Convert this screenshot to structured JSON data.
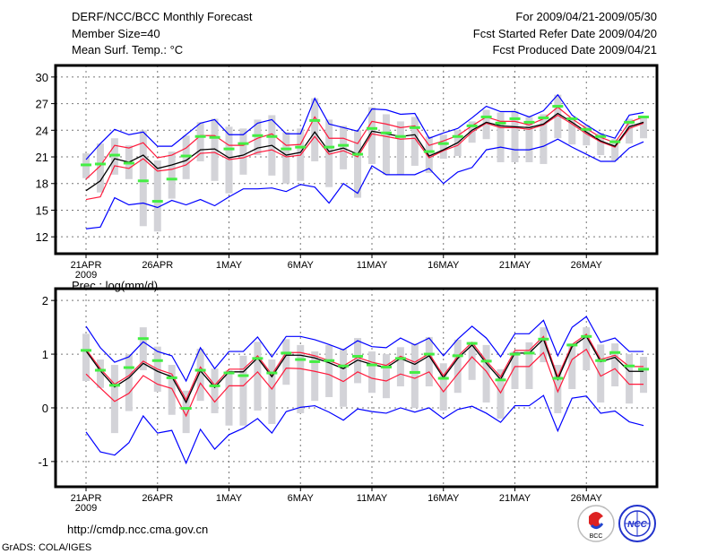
{
  "header": {
    "title": "DERF/NCC/BCC Monthly Forecast",
    "member_size": "Member Size=40",
    "variable": "Mean Surf. Temp.: °C",
    "period": "For 2009/04/21-2009/05/30",
    "started": "Fcst Started Refer Date 2009/04/20",
    "produced": "Fcst Produced Date 2009/04/21"
  },
  "footer": {
    "url": "http://cmdp.ncc.cma.gov.cn",
    "credit": "GrADS: COLA/IGES",
    "logo_bcc": "BCC",
    "logo_ncc": "NCC"
  },
  "colors": {
    "mean": "#000000",
    "spread": "#ff1a3c",
    "extreme": "#0000ff",
    "obs": "#44ee44",
    "range": "#d3d3d8"
  },
  "chart_data": [
    {
      "type": "line",
      "title": "Mean Surf. Temp.: °C",
      "xlabel_year": "2009",
      "xticks": [
        "21APR",
        "26APR",
        "1MAY",
        "6MAY",
        "11MAY",
        "16MAY",
        "21MAY",
        "26MAY"
      ],
      "xtick_days": [
        0,
        5,
        10,
        15,
        20,
        25,
        30,
        35
      ],
      "yticks": [
        12,
        15,
        18,
        21,
        24,
        27,
        30
      ],
      "ylim": [
        10.1,
        31.3
      ],
      "grid": true,
      "days": 40,
      "series": [
        {
          "name": "mean",
          "values": [
            17.2,
            18.3,
            20.8,
            20.4,
            21.2,
            19.7,
            20.1,
            20.6,
            21.8,
            21.9,
            20.9,
            21.2,
            22.0,
            22.3,
            21.2,
            21.5,
            23.8,
            21.6,
            22.0,
            21.3,
            23.9,
            23.6,
            23.3,
            23.5,
            21.1,
            21.8,
            22.6,
            24.0,
            24.9,
            24.5,
            24.4,
            24.3,
            24.7,
            25.9,
            24.9,
            23.8,
            22.8,
            22.2,
            24.4,
            24.9
          ]
        },
        {
          "name": "upper",
          "values": [
            18.5,
            20.0,
            22.3,
            22.0,
            22.6,
            20.9,
            21.2,
            22.0,
            23.4,
            23.4,
            22.3,
            22.3,
            23.1,
            23.6,
            22.3,
            22.4,
            25.5,
            23.1,
            23.1,
            22.5,
            25.0,
            24.7,
            24.3,
            24.5,
            22.3,
            22.8,
            23.4,
            24.5,
            25.5,
            25.0,
            25.0,
            24.6,
            25.3,
            26.6,
            25.3,
            24.2,
            23.2,
            22.6,
            24.9,
            25.5
          ]
        },
        {
          "name": "lower",
          "values": [
            16.2,
            16.5,
            20.0,
            19.7,
            20.8,
            19.4,
            19.6,
            20.1,
            21.4,
            21.5,
            20.7,
            20.9,
            21.5,
            21.8,
            21.0,
            21.2,
            23.3,
            21.3,
            21.7,
            21.0,
            23.6,
            23.3,
            23.0,
            23.1,
            20.9,
            21.7,
            22.3,
            23.8,
            24.8,
            24.3,
            24.3,
            24.1,
            24.6,
            25.7,
            24.7,
            23.6,
            22.7,
            22.1,
            24.2,
            24.8
          ]
        },
        {
          "name": "max",
          "values": [
            20.7,
            22.5,
            24.1,
            23.5,
            23.8,
            22.2,
            22.2,
            23.5,
            24.8,
            25.2,
            23.5,
            23.5,
            24.8,
            25.2,
            23.6,
            23.6,
            27.6,
            24.7,
            24.3,
            23.9,
            26.4,
            26.3,
            25.8,
            25.9,
            23.1,
            23.7,
            24.2,
            25.4,
            26.7,
            26.1,
            26.1,
            25.5,
            26.2,
            28.0,
            25.7,
            24.6,
            23.6,
            23.1,
            25.7,
            26.0
          ]
        },
        {
          "name": "min",
          "values": [
            12.9,
            13.1,
            16.4,
            15.6,
            15.8,
            15.3,
            16.1,
            15.6,
            16.2,
            15.5,
            16.5,
            17.4,
            17.4,
            17.5,
            17.1,
            17.9,
            17.6,
            15.8,
            18.0,
            16.9,
            20.0,
            19.0,
            19.0,
            19.0,
            19.7,
            18.0,
            19.3,
            19.8,
            21.8,
            22.1,
            21.8,
            21.8,
            22.2,
            23.0,
            22.1,
            21.3,
            20.5,
            20.5,
            22.0,
            22.7
          ]
        },
        {
          "name": "obs",
          "values": [
            20.1,
            20.2,
            21.2,
            20.3,
            18.3,
            16.0,
            18.5,
            21.1,
            23.3,
            23.2,
            21.9,
            22.5,
            23.4,
            23.3,
            21.9,
            22.1,
            25.1,
            22.1,
            22.3,
            21.3,
            24.2,
            23.7,
            23.3,
            24.3,
            21.6,
            22.5,
            23.3,
            24.5,
            25.5,
            24.8,
            25.3,
            24.9,
            25.4,
            26.7,
            25.3,
            24.1,
            23.3,
            22.7,
            24.9,
            25.5
          ]
        }
      ],
      "range_bars": [
        [
          18.6,
          21.4
        ],
        [
          17.0,
          22.5
        ],
        [
          19.0,
          23.1
        ],
        [
          18.5,
          22.3
        ],
        [
          13.2,
          24.0
        ],
        [
          12.6,
          20.6
        ],
        [
          16.3,
          21.6
        ],
        [
          18.5,
          23.4
        ],
        [
          20.5,
          24.9
        ],
        [
          18.3,
          25.3
        ],
        [
          16.9,
          24.4
        ],
        [
          19.0,
          24.2
        ],
        [
          21.2,
          25.2
        ],
        [
          18.9,
          25.7
        ],
        [
          18.0,
          23.8
        ],
        [
          18.3,
          24.2
        ],
        [
          20.5,
          27.6
        ],
        [
          17.6,
          25.2
        ],
        [
          19.6,
          24.5
        ],
        [
          16.4,
          24.0
        ],
        [
          20.2,
          26.6
        ],
        [
          19.0,
          25.8
        ],
        [
          19.0,
          25.0
        ],
        [
          20.0,
          25.5
        ],
        [
          19.2,
          23.3
        ],
        [
          20.8,
          23.5
        ],
        [
          21.1,
          24.0
        ],
        [
          22.6,
          25.0
        ],
        [
          23.0,
          26.3
        ],
        [
          20.4,
          26.0
        ],
        [
          20.4,
          26.2
        ],
        [
          20.4,
          25.5
        ],
        [
          20.2,
          25.8
        ],
        [
          23.1,
          28.0
        ],
        [
          22.4,
          25.3
        ],
        [
          22.3,
          24.6
        ],
        [
          21.2,
          23.7
        ],
        [
          20.6,
          23.0
        ],
        [
          22.5,
          25.3
        ],
        [
          23.1,
          25.4
        ]
      ]
    },
    {
      "type": "line",
      "title": "Prec.: log(mm/d)",
      "xlabel_year": "2009",
      "xticks": [
        "21APR",
        "26APR",
        "1MAY",
        "6MAY",
        "11MAY",
        "16MAY",
        "21MAY",
        "26MAY"
      ],
      "xtick_days": [
        0,
        5,
        10,
        15,
        20,
        25,
        30,
        35
      ],
      "yticks": [
        -1,
        0,
        1,
        2
      ],
      "ylim": [
        -1.47,
        2.22
      ],
      "grid": true,
      "days": 40,
      "series": [
        {
          "name": "mean",
          "values": [
            1.06,
            0.69,
            0.39,
            0.56,
            0.83,
            0.68,
            0.58,
            0.1,
            0.69,
            0.38,
            0.67,
            0.67,
            0.93,
            0.58,
            0.98,
            0.98,
            0.93,
            0.84,
            0.73,
            0.89,
            0.81,
            0.75,
            0.92,
            0.81,
            0.97,
            0.56,
            0.92,
            1.17,
            0.83,
            0.53,
            1.02,
            1.02,
            1.28,
            0.53,
            1.14,
            1.33,
            0.86,
            0.94,
            0.68,
            0.68
          ]
        },
        {
          "name": "upper",
          "values": [
            1.09,
            0.73,
            0.44,
            0.6,
            0.87,
            0.72,
            0.63,
            0.15,
            0.76,
            0.42,
            0.72,
            0.72,
            0.97,
            0.62,
            1.03,
            1.03,
            0.97,
            0.88,
            0.78,
            0.94,
            0.85,
            0.79,
            0.96,
            0.85,
            1.01,
            0.6,
            0.96,
            1.22,
            0.87,
            0.58,
            1.07,
            1.07,
            1.33,
            0.58,
            1.18,
            1.37,
            0.9,
            0.98,
            0.77,
            0.77
          ]
        },
        {
          "name": "lower",
          "values": [
            0.63,
            0.37,
            0.12,
            0.27,
            0.6,
            0.44,
            0.36,
            -0.15,
            0.46,
            0.11,
            0.41,
            0.41,
            0.67,
            0.35,
            0.74,
            0.73,
            0.68,
            0.62,
            0.49,
            0.67,
            0.55,
            0.5,
            0.63,
            0.55,
            0.67,
            0.3,
            0.63,
            0.95,
            0.68,
            0.28,
            0.77,
            0.77,
            1.03,
            0.3,
            0.9,
            1.09,
            0.59,
            0.73,
            0.44,
            0.44
          ]
        },
        {
          "name": "max",
          "values": [
            1.52,
            1.12,
            0.85,
            0.95,
            1.23,
            1.05,
            0.97,
            0.5,
            1.12,
            0.73,
            1.05,
            1.05,
            1.32,
            0.95,
            1.33,
            1.33,
            1.27,
            1.18,
            1.08,
            1.25,
            1.14,
            1.12,
            1.3,
            1.17,
            1.3,
            0.97,
            1.28,
            1.52,
            1.3,
            0.95,
            1.38,
            1.38,
            1.63,
            0.97,
            1.5,
            1.7,
            1.22,
            1.3,
            1.05,
            1.05
          ]
        },
        {
          "name": "min",
          "values": [
            -0.45,
            -0.82,
            -0.88,
            -0.65,
            -0.15,
            -0.47,
            -0.42,
            -1.03,
            -0.4,
            -0.77,
            -0.5,
            -0.38,
            -0.2,
            -0.47,
            -0.07,
            0.01,
            0.04,
            -0.08,
            -0.23,
            -0.02,
            -0.07,
            -0.1,
            0.0,
            -0.08,
            0.0,
            -0.2,
            -0.03,
            0.03,
            -0.1,
            -0.27,
            0.04,
            0.04,
            0.23,
            -0.43,
            0.18,
            0.22,
            -0.1,
            -0.06,
            -0.26,
            -0.33
          ]
        },
        {
          "name": "obs",
          "values": [
            1.07,
            0.7,
            0.42,
            0.75,
            1.29,
            0.88,
            0.56,
            -0.01,
            0.7,
            0.41,
            0.65,
            0.6,
            0.92,
            0.65,
            1.02,
            0.9,
            0.86,
            0.88,
            0.78,
            0.96,
            0.8,
            0.76,
            0.92,
            0.66,
            1.0,
            0.55,
            0.97,
            1.2,
            0.87,
            0.52,
            1.0,
            1.02,
            1.28,
            0.55,
            1.17,
            1.33,
            0.88,
            1.03,
            0.78,
            0.72
          ]
        }
      ],
      "range_bars": [
        [
          0.5,
          1.38
        ],
        [
          0.37,
          0.9
        ],
        [
          -0.47,
          0.8
        ],
        [
          -0.06,
          1.0
        ],
        [
          0.7,
          1.5
        ],
        [
          0.3,
          1.14
        ],
        [
          -0.13,
          0.8
        ],
        [
          -0.47,
          0.32
        ],
        [
          0.13,
          1.1
        ],
        [
          -0.1,
          0.73
        ],
        [
          -0.33,
          0.7
        ],
        [
          -0.33,
          0.97
        ],
        [
          -0.05,
          1.23
        ],
        [
          -0.3,
          0.9
        ],
        [
          0.43,
          1.28
        ],
        [
          -0.1,
          1.17
        ],
        [
          0.13,
          1.05
        ],
        [
          0.2,
          1.17
        ],
        [
          0.02,
          1.1
        ],
        [
          0.46,
          1.3
        ],
        [
          0.28,
          1.05
        ],
        [
          0.18,
          1.0
        ],
        [
          0.4,
          1.13
        ],
        [
          0.0,
          1.2
        ],
        [
          0.4,
          1.32
        ],
        [
          -0.05,
          0.83
        ],
        [
          0.28,
          1.27
        ],
        [
          0.52,
          1.23
        ],
        [
          0.1,
          1.17
        ],
        [
          -0.2,
          0.72
        ],
        [
          0.35,
          1.05
        ],
        [
          0.35,
          1.22
        ],
        [
          0.85,
          1.5
        ],
        [
          -0.1,
          0.8
        ],
        [
          0.35,
          1.2
        ],
        [
          0.7,
          1.5
        ],
        [
          0.1,
          1.18
        ],
        [
          0.4,
          1.2
        ],
        [
          0.08,
          1.0
        ],
        [
          0.28,
          0.95
        ]
      ]
    }
  ]
}
